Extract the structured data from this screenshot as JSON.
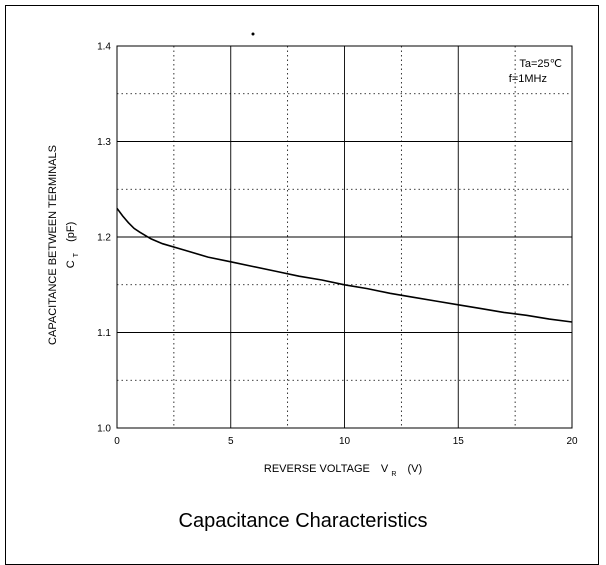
{
  "chart_data": {
    "type": "line",
    "title": "Capacitance Characteristics",
    "xlabel": {
      "text": "REVERSE VOLTAGE",
      "symbol": "V",
      "subscript": "R",
      "unit": "(V)"
    },
    "ylabel": {
      "line1": "CAPACITANCE BETWEEN TERMINALS",
      "symbol": "C",
      "subscript": "T",
      "unit": "(pF)"
    },
    "xlim": [
      0,
      20
    ],
    "ylim": [
      1.0,
      1.4
    ],
    "x_ticks": [
      "0",
      "5",
      "10",
      "15",
      "20"
    ],
    "y_ticks": [
      "1.0",
      "1.1",
      "1.2",
      "1.3",
      "1.4"
    ],
    "grid": true,
    "conditions": [
      "Ta=25℃",
      "f=1MHz"
    ],
    "series": [
      {
        "x": [
          0,
          0.25,
          0.5,
          0.75,
          1,
          1.5,
          2,
          3,
          4,
          5,
          6,
          7,
          8,
          9,
          10,
          11,
          12,
          13,
          14,
          15,
          16,
          17,
          18,
          19,
          20
        ],
        "values": [
          1.23,
          1.222,
          1.215,
          1.209,
          1.205,
          1.198,
          1.193,
          1.186,
          1.179,
          1.174,
          1.169,
          1.164,
          1.159,
          1.155,
          1.15,
          1.146,
          1.141,
          1.137,
          1.133,
          1.129,
          1.125,
          1.121,
          1.118,
          1.114,
          1.111
        ]
      }
    ]
  }
}
